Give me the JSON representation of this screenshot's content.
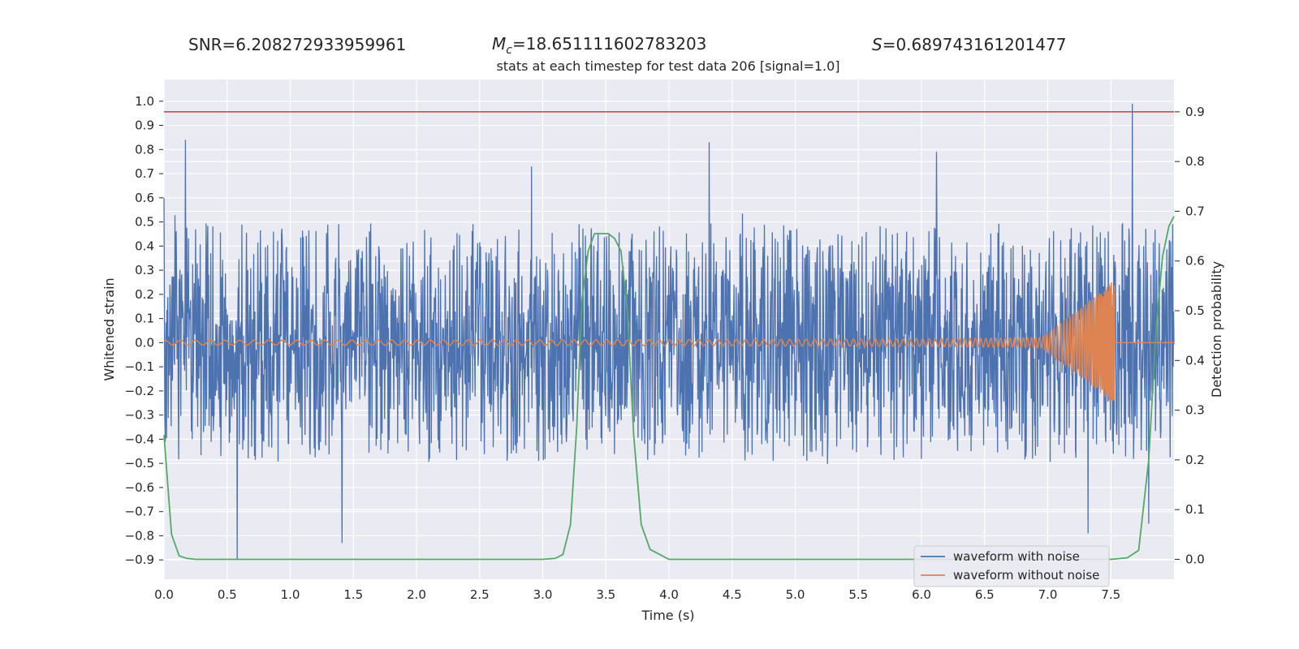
{
  "chart_data": {
    "type": "line",
    "stats_header": {
      "snr": "SNR=6.208272933959961",
      "mc_symbol": "M",
      "mc_subscript": "c",
      "mc_value": "=18.651111602783203",
      "s_symbol": "S",
      "s_value": "=0.689743161201477"
    },
    "title": "stats at each timestep for test data 206 [signal=1.0]",
    "xlabel": "Time (s)",
    "ylabel_left": "Whitened strain",
    "ylabel_right": "Detection probability",
    "xlim": [
      0.0,
      8.0
    ],
    "ylim_left": [
      -0.98,
      1.09
    ],
    "ylim_right": [
      -0.04,
      0.965
    ],
    "xticks": [
      "0.0",
      "0.5",
      "1.0",
      "1.5",
      "2.0",
      "2.5",
      "3.0",
      "3.5",
      "4.0",
      "4.5",
      "5.0",
      "5.5",
      "6.0",
      "6.5",
      "7.0",
      "7.5"
    ],
    "yticks_left": [
      "1.0",
      "0.9",
      "0.8",
      "0.7",
      "0.6",
      "0.5",
      "0.4",
      "0.3",
      "0.2",
      "0.1",
      "0.0",
      "−0.1",
      "−0.2",
      "−0.3",
      "−0.4",
      "−0.5",
      "−0.6",
      "−0.7",
      "−0.8",
      "−0.9"
    ],
    "yticks_right": [
      "0.9",
      "0.8",
      "0.7",
      "0.6",
      "0.5",
      "0.4",
      "0.3",
      "0.2",
      "0.1",
      "0.0"
    ],
    "grid": true,
    "legend_position": "lower-right",
    "threshold": {
      "axis": "right",
      "value": 0.9,
      "color": "#c44e52"
    },
    "series": [
      {
        "name": "waveform with noise",
        "axis": "left",
        "color": "#4c72b0",
        "kind": "noise",
        "envelope_typical": 0.42,
        "spikes": [
          [
            0.0,
            0.6
          ],
          [
            0.17,
            0.84
          ],
          [
            0.58,
            -0.9
          ],
          [
            1.41,
            -0.83
          ],
          [
            2.91,
            0.73
          ],
          [
            4.32,
            0.83
          ],
          [
            6.12,
            0.79
          ],
          [
            7.32,
            -0.79
          ],
          [
            7.67,
            0.99
          ],
          [
            7.8,
            -0.75
          ]
        ]
      },
      {
        "name": "waveform without noise",
        "axis": "left",
        "color": "#dd8452",
        "kind": "chirp",
        "merger_time": 7.53,
        "peak_amplitude": 0.25,
        "start_amplitude": 0.01
      },
      {
        "name": "",
        "axis": "right",
        "color": "#55a868",
        "kind": "probability",
        "x": [
          0.0,
          0.06,
          0.12,
          0.18,
          0.25,
          0.5,
          1.0,
          1.5,
          2.0,
          2.5,
          3.0,
          3.1,
          3.16,
          3.22,
          3.27,
          3.31,
          3.36,
          3.41,
          3.46,
          3.52,
          3.57,
          3.62,
          3.67,
          3.72,
          3.78,
          3.85,
          4.0,
          4.5,
          5.0,
          5.5,
          6.0,
          6.5,
          7.0,
          7.5,
          7.63,
          7.72,
          7.8,
          7.86,
          7.91,
          7.96,
          8.0
        ],
        "y": [
          0.25,
          0.05,
          0.007,
          0.002,
          0.0,
          0.0,
          0.0,
          0.0,
          0.0,
          0.0,
          0.0,
          0.002,
          0.01,
          0.07,
          0.27,
          0.52,
          0.62,
          0.655,
          0.655,
          0.655,
          0.645,
          0.62,
          0.5,
          0.25,
          0.07,
          0.02,
          0.0,
          0.0,
          0.0,
          0.0,
          0.0,
          0.0,
          0.0,
          0.0,
          0.003,
          0.018,
          0.2,
          0.47,
          0.61,
          0.67,
          0.69
        ]
      }
    ]
  }
}
